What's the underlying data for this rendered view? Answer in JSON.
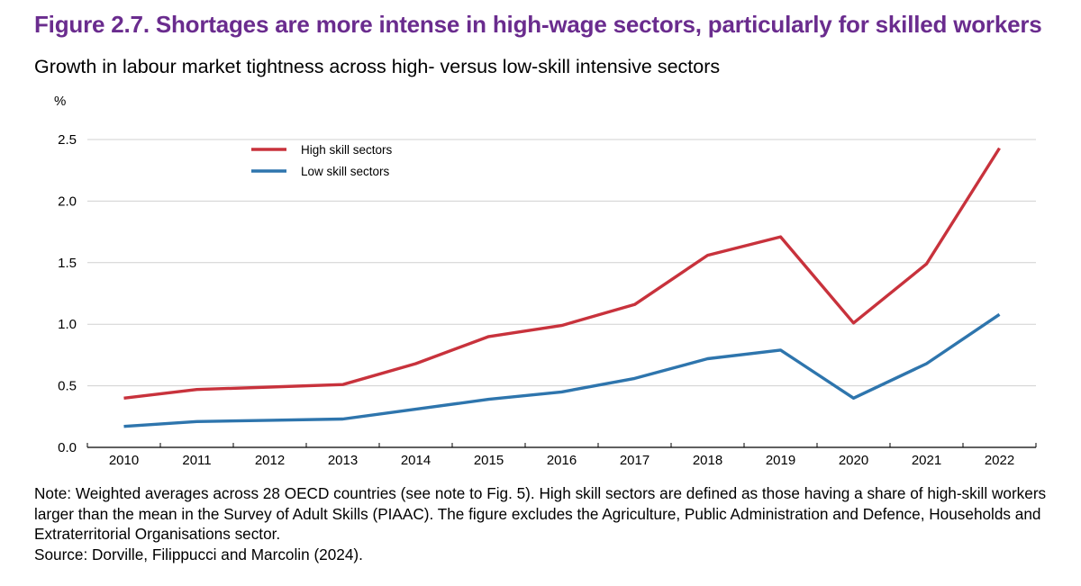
{
  "header": {
    "title": "Figure 2.7. Shortages are more intense in high-wage sectors, particularly for skilled workers",
    "subtitle": "Growth in labour market tightness across high- versus low-skill intensive sectors"
  },
  "chart_data": {
    "type": "line",
    "title": "Figure 2.7. Shortages are more intense in high-wage sectors, particularly for skilled workers",
    "subtitle": "Growth in labour market tightness across high- versus low-skill intensive sectors",
    "xlabel": "",
    "ylabel": "%",
    "x": [
      "2010",
      "2011",
      "2012",
      "2013",
      "2014",
      "2015",
      "2016",
      "2017",
      "2018",
      "2019",
      "2020",
      "2021",
      "2022"
    ],
    "ylim": [
      0,
      2.5
    ],
    "yticks": [
      "0.0",
      "0.5",
      "1.0",
      "1.5",
      "2.0",
      "2.5"
    ],
    "grid": true,
    "legend_position": "top-left",
    "series": [
      {
        "name": "High skill sectors",
        "color": "#c8323c",
        "values": [
          0.4,
          0.47,
          0.49,
          0.51,
          0.68,
          0.9,
          0.99,
          1.16,
          1.56,
          1.71,
          1.01,
          1.49,
          2.43
        ]
      },
      {
        "name": "Low skill sectors",
        "color": "#2e75ad",
        "values": [
          0.17,
          0.21,
          0.22,
          0.23,
          0.31,
          0.39,
          0.45,
          0.56,
          0.72,
          0.79,
          0.4,
          0.68,
          1.08
        ]
      }
    ]
  },
  "notes": {
    "note": "Note: Weighted averages across 28 OECD countries (see note to Fig. 5). High skill sectors are defined as those having a share of high-skill workers larger than the mean in the Survey of Adult Skills (PIAAC). The figure excludes the Agriculture, Public Administration and Defence, Households and Extraterritorial Organisations sector.",
    "source": "Source: Dorville, Filippucci and Marcolin (2024)."
  }
}
